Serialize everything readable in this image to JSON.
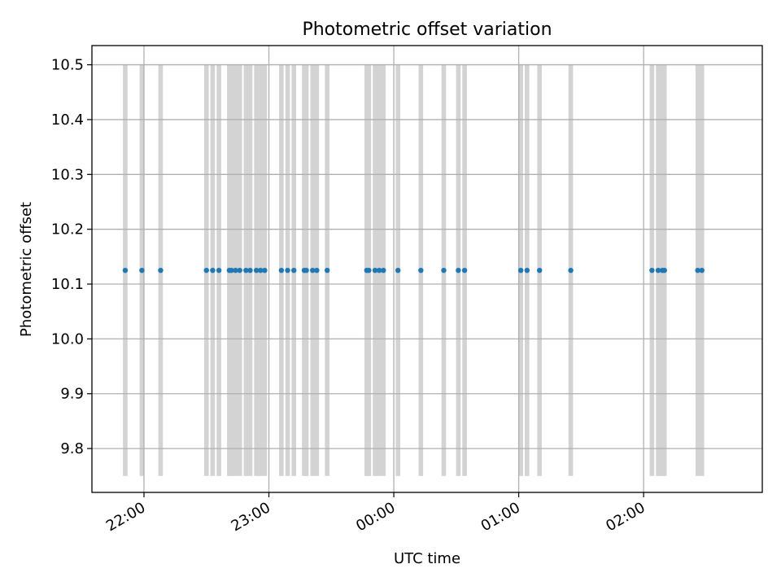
{
  "chart_data": {
    "type": "scatter",
    "title": "Photometric offset variation",
    "xlabel": "UTC time",
    "ylabel": "Photometric offset",
    "x_axis_type": "time",
    "x_range": [
      "21:35",
      "02:57"
    ],
    "ylim": [
      9.72,
      10.535
    ],
    "x_ticks": [
      "22:00",
      "23:00",
      "00:00",
      "01:00",
      "02:00"
    ],
    "x_tick_labels": [
      "22:00",
      "23:00",
      "00:00",
      "01:00",
      "02:00"
    ],
    "y_ticks": [
      9.8,
      9.9,
      10.0,
      10.1,
      10.2,
      10.3,
      10.4,
      10.5
    ],
    "y_tick_labels": [
      "9.8",
      "9.9",
      "10.0",
      "10.1",
      "10.2",
      "10.3",
      "10.4",
      "10.5"
    ],
    "grid": true,
    "point_color": "#1f77b4",
    "band_color": "#d3d3d3",
    "band_range": [
      9.75,
      10.5
    ],
    "points": [
      {
        "x": "21:51",
        "y": 10.125
      },
      {
        "x": "21:59",
        "y": 10.125
      },
      {
        "x": "22:08",
        "y": 10.125
      },
      {
        "x": "22:30",
        "y": 10.125
      },
      {
        "x": "22:33",
        "y": 10.125
      },
      {
        "x": "22:36",
        "y": 10.125
      },
      {
        "x": "22:41",
        "y": 10.125
      },
      {
        "x": "22:42",
        "y": 10.125
      },
      {
        "x": "22:44",
        "y": 10.125
      },
      {
        "x": "22:46",
        "y": 10.125
      },
      {
        "x": "22:49",
        "y": 10.125
      },
      {
        "x": "22:51",
        "y": 10.125
      },
      {
        "x": "22:54",
        "y": 10.125
      },
      {
        "x": "22:56",
        "y": 10.125
      },
      {
        "x": "22:58",
        "y": 10.125
      },
      {
        "x": "23:06",
        "y": 10.125
      },
      {
        "x": "23:09",
        "y": 10.125
      },
      {
        "x": "23:12",
        "y": 10.125
      },
      {
        "x": "23:17",
        "y": 10.125
      },
      {
        "x": "23:18",
        "y": 10.125
      },
      {
        "x": "23:21",
        "y": 10.125
      },
      {
        "x": "23:23",
        "y": 10.125
      },
      {
        "x": "23:28",
        "y": 10.125
      },
      {
        "x": "23:47",
        "y": 10.125
      },
      {
        "x": "23:48",
        "y": 10.125
      },
      {
        "x": "23:51",
        "y": 10.125
      },
      {
        "x": "23:53",
        "y": 10.125
      },
      {
        "x": "23:55",
        "y": 10.125
      },
      {
        "x": "00:02",
        "y": 10.125
      },
      {
        "x": "00:13",
        "y": 10.125
      },
      {
        "x": "00:24",
        "y": 10.125
      },
      {
        "x": "00:31",
        "y": 10.125
      },
      {
        "x": "00:34",
        "y": 10.125
      },
      {
        "x": "01:01",
        "y": 10.125
      },
      {
        "x": "01:04",
        "y": 10.125
      },
      {
        "x": "01:10",
        "y": 10.125
      },
      {
        "x": "01:25",
        "y": 10.125
      },
      {
        "x": "02:04",
        "y": 10.125
      },
      {
        "x": "02:07",
        "y": 10.125
      },
      {
        "x": "02:09",
        "y": 10.125
      },
      {
        "x": "02:10",
        "y": 10.125
      },
      {
        "x": "02:26",
        "y": 10.125
      },
      {
        "x": "02:28",
        "y": 10.125
      }
    ]
  }
}
